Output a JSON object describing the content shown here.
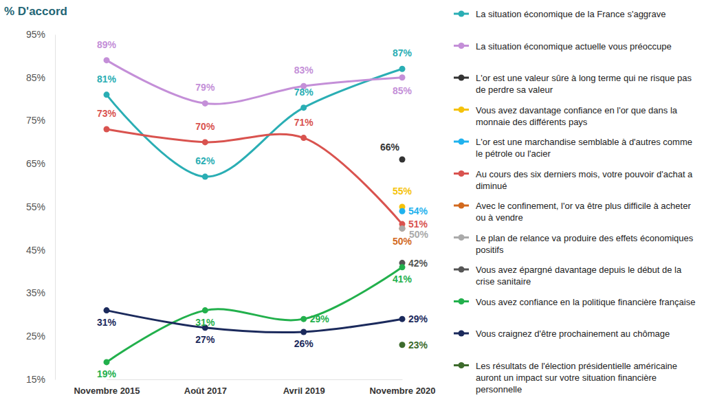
{
  "chart_data": {
    "type": "line",
    "y_label": "% D'accord",
    "categories": [
      "Novembre 2015",
      "Août 2017",
      "Avril 2019",
      "Novembre 2020"
    ],
    "ylim": [
      15,
      95
    ],
    "yticks": [
      {
        "value": 15,
        "label": "15%"
      },
      {
        "value": 25,
        "label": "25%"
      },
      {
        "value": 35,
        "label": "35%"
      },
      {
        "value": 45,
        "label": "45%"
      },
      {
        "value": 55,
        "label": "55%"
      },
      {
        "value": 65,
        "label": "65%"
      },
      {
        "value": 75,
        "label": "75%"
      },
      {
        "value": 85,
        "label": "85%"
      },
      {
        "value": 95,
        "label": "95%"
      }
    ],
    "grid": false,
    "legend": "right",
    "data_labels": true,
    "marker": "circle",
    "series": [
      {
        "name": "La situation économique de la France s'aggrave",
        "color": "#2aaeb4",
        "values": [
          81,
          62,
          78,
          87
        ],
        "value_labels": [
          "81%",
          "62%",
          "78%",
          "87%"
        ]
      },
      {
        "name": "La situation économique actuelle vous préoccupe",
        "color": "#c48fd8",
        "values": [
          89,
          79,
          83,
          85
        ],
        "value_labels": [
          "89%",
          "79%",
          "83%",
          "85%"
        ]
      },
      {
        "name": "L'or est une valeur sûre à long terme qui ne risque pas de perdre sa valeur",
        "color": "#333333",
        "values": [
          null,
          null,
          null,
          66
        ],
        "value_labels": [
          null,
          null,
          null,
          "66%"
        ]
      },
      {
        "name": "Vous avez davantage confiance en l'or que dans la monnaie des différents pays",
        "color": "#f5c20a",
        "values": [
          null,
          null,
          null,
          55
        ],
        "value_labels": [
          null,
          null,
          null,
          "55%"
        ]
      },
      {
        "name": "L'or est une marchandise semblable à d'autres comme le pétrole ou l'acier",
        "color": "#1fb2ee",
        "values": [
          null,
          null,
          null,
          54
        ],
        "value_labels": [
          null,
          null,
          null,
          "54%"
        ]
      },
      {
        "name": "Au cours des six derniers mois, votre pouvoir d'achat a diminué",
        "color": "#d9534f",
        "values": [
          73,
          70,
          71,
          51
        ],
        "value_labels": [
          "73%",
          "70%",
          "71%",
          "51%"
        ]
      },
      {
        "name": "Avec le confinement, l'or va être plus difficile à acheter ou à vendre",
        "color": "#d2691e",
        "values": [
          null,
          null,
          null,
          50
        ],
        "value_labels": [
          null,
          null,
          null,
          "50%"
        ]
      },
      {
        "name": "Le plan de relance va produire des effets économiques positifs",
        "color": "#aaaaaa",
        "values": [
          null,
          null,
          null,
          50
        ],
        "value_labels": [
          null,
          null,
          null,
          "50%"
        ]
      },
      {
        "name": "Vous avez épargné davantage depuis le début de la crise sanitaire",
        "color": "#555555",
        "values": [
          null,
          null,
          null,
          42
        ],
        "value_labels": [
          null,
          null,
          null,
          "42%"
        ]
      },
      {
        "name": "Vous avez confiance en la politique financière française",
        "color": "#22b04c",
        "values": [
          19,
          31,
          29,
          41
        ],
        "value_labels": [
          "19%",
          "31%",
          "29%",
          "41%"
        ]
      },
      {
        "name": "Vous craignez d'être prochainement au chômage",
        "color": "#1b2a5c",
        "values": [
          31,
          27,
          26,
          29
        ],
        "value_labels": [
          "31%",
          "27%",
          "26%",
          "29%"
        ]
      },
      {
        "name": "Les résultats de l'élection présidentielle américaine auront un impact sur votre situation financière personnelle",
        "color": "#3d6b2c",
        "values": [
          null,
          null,
          null,
          23
        ],
        "value_labels": [
          null,
          null,
          null,
          "23%"
        ]
      }
    ]
  }
}
